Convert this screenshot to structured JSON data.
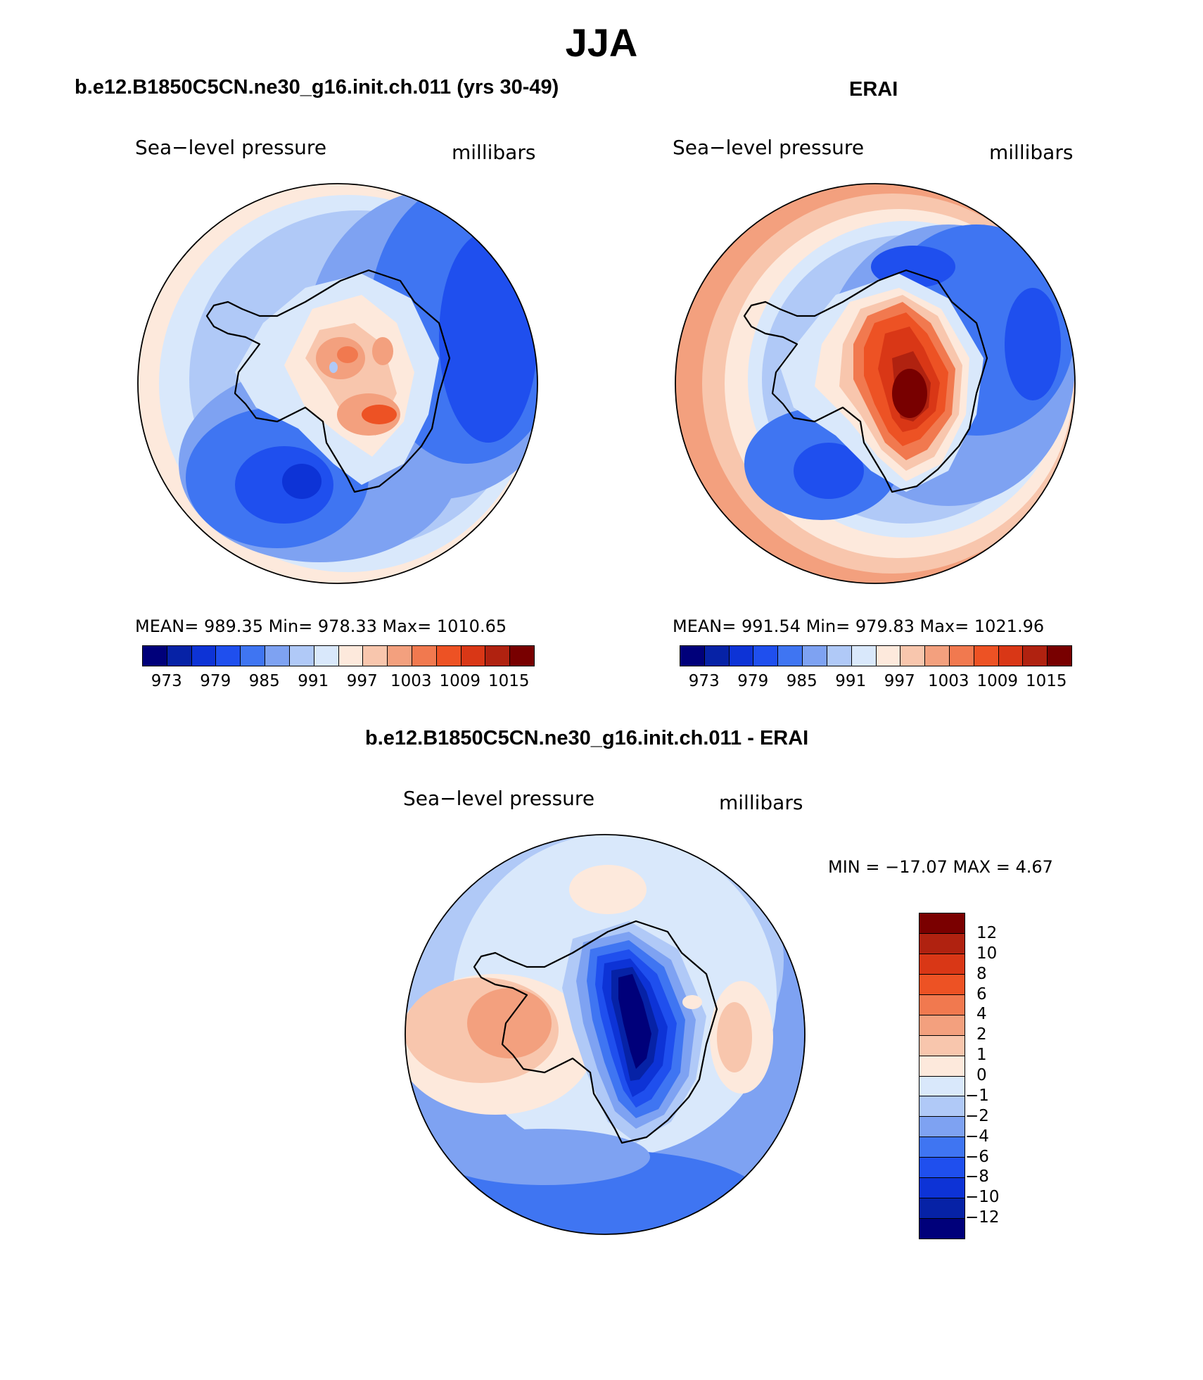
{
  "figure_title": "JJA",
  "panels": [
    {
      "title": "b.e12.B1850C5CN.ne30_g16.init.ch.011 (yrs 30-49)",
      "left_label": "Sea−level pressure",
      "right_label": "millibars",
      "stats": "MEAN=  989.35    Min=  978.33    Max=  1010.65",
      "colorbar_labels": [
        "973",
        "979",
        "985",
        "991",
        "997",
        "1003",
        "1009",
        "1015"
      ]
    },
    {
      "title": "ERAI",
      "left_label": "Sea−level pressure",
      "right_label": "millibars",
      "stats": "MEAN=  991.54    Min=  979.83    Max=  1021.96",
      "colorbar_labels": [
        "973",
        "979",
        "985",
        "991",
        "997",
        "1003",
        "1009",
        "1015"
      ]
    },
    {
      "title": "b.e12.B1850C5CN.ne30_g16.init.ch.011 - ERAI",
      "left_label": "Sea−level pressure",
      "right_label": "millibars",
      "stats": "MIN = −17.07 MAX =     4.67",
      "colorbar_labels": [
        "12",
        "10",
        "8",
        "6",
        "4",
        "2",
        "1",
        "0",
        "−1",
        "−2",
        "−4",
        "−6",
        "−8",
        "−10",
        "−12"
      ]
    }
  ],
  "colors": {
    "abs_palette": [
      "#00007a",
      "#0622a6",
      "#0d33d6",
      "#1f4fee",
      "#3f75f2",
      "#7ea2f2",
      "#b0c9f7",
      "#d9e8fb",
      "#fde9dc",
      "#f8c6ad",
      "#f3a07e",
      "#f1794f",
      "#ed5224",
      "#d93716",
      "#b02210",
      "#780000"
    ],
    "diff_palette": [
      "#7a0000",
      "#b02210",
      "#d93716",
      "#ed5224",
      "#f1794f",
      "#f3a07e",
      "#f8c6ad",
      "#fde9dc",
      "#d9e8fb",
      "#b0c9f7",
      "#7ea2f2",
      "#3f75f2",
      "#1f4fee",
      "#0d33d6",
      "#0622a6",
      "#00007a"
    ]
  }
}
